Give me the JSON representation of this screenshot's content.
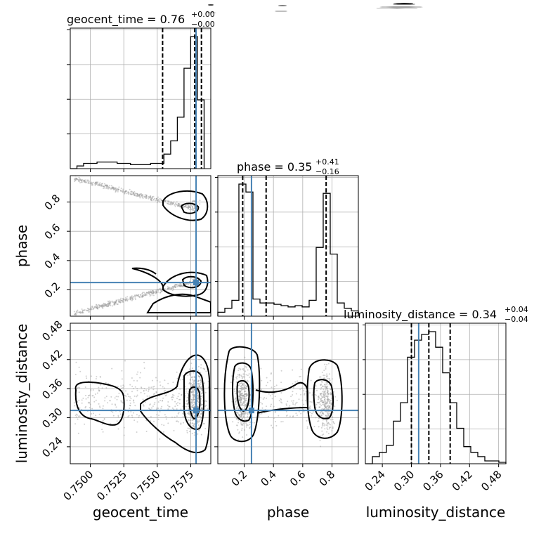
{
  "chart_data": {
    "type": "corner",
    "parameters": [
      "geocent_time",
      "phase",
      "luminosity_distance"
    ],
    "truths": {
      "geocent_time": 0.7579,
      "phase": 0.25,
      "luminosity_distance": 0.315
    },
    "titles": [
      {
        "param": "geocent_time",
        "label": "geocent_time = 0.76",
        "sup": "+0.00",
        "sub": "−0.00"
      },
      {
        "param": "phase",
        "label": "phase = 0.35",
        "sup": "+0.41",
        "sub": "−0.16"
      },
      {
        "param": "luminosity_distance",
        "label": "luminosity_distance = 0.34",
        "sup": "+0.04",
        "sub": "−0.04"
      }
    ],
    "axis_labels": {
      "x": [
        "geocent_time",
        "phase",
        "luminosity_distance"
      ],
      "y": [
        "phase",
        "luminosity_distance"
      ]
    },
    "ranges": {
      "geocent_time": [
        0.7485,
        0.759
      ],
      "phase": [
        0.02,
        0.98
      ],
      "luminosity_distance": [
        0.205,
        0.495
      ]
    },
    "ticks": {
      "geocent_time": {
        "values": [
          0.75,
          0.7525,
          0.755,
          0.7575
        ],
        "labels": [
          "0.7500",
          "0.7525",
          "0.7550",
          "0.7575"
        ]
      },
      "phase": {
        "values": [
          0.2,
          0.4,
          0.6,
          0.8
        ],
        "labels": [
          "0.2",
          "0.4",
          "0.6",
          "0.8"
        ]
      },
      "luminosity_distance": {
        "values": [
          0.24,
          0.3,
          0.36,
          0.42,
          0.48
        ],
        "labels": [
          "0.24",
          "0.30",
          "0.36",
          "0.42",
          "0.48"
        ]
      }
    },
    "quantiles": {
      "geocent_time": [
        0.7554,
        0.7578,
        0.7583
      ],
      "phase": [
        0.19,
        0.35,
        0.76
      ],
      "luminosity_distance": [
        0.3,
        0.336,
        0.38
      ]
    },
    "histograms": {
      "geocent_time": {
        "edges": [
          0.7485,
          0.749,
          0.7495,
          0.75,
          0.7505,
          0.751,
          0.7515,
          0.752,
          0.7525,
          0.753,
          0.7535,
          0.754,
          0.7545,
          0.755,
          0.7555,
          0.756,
          0.7565,
          0.757,
          0.7575,
          0.758,
          0.7585
        ],
        "counts": [
          0,
          2,
          4,
          4,
          5,
          5,
          5,
          4,
          4,
          3,
          3,
          3,
          4,
          4,
          11,
          21,
          39,
          76,
          100,
          52
        ]
      },
      "phase": {
        "edges": [
          0.02,
          0.068,
          0.116,
          0.164,
          0.212,
          0.26,
          0.308,
          0.356,
          0.404,
          0.452,
          0.5,
          0.548,
          0.596,
          0.644,
          0.692,
          0.74,
          0.788,
          0.836,
          0.884,
          0.932,
          0.98
        ],
        "counts": [
          3,
          6,
          12,
          100,
          94,
          13,
          10,
          10,
          9,
          8,
          7,
          8,
          7,
          12,
          52,
          93,
          47,
          10,
          6,
          4
        ]
      },
      "luminosity_distance": {
        "edges": [
          0.205,
          0.2195,
          0.234,
          0.2485,
          0.263,
          0.2775,
          0.292,
          0.3065,
          0.321,
          0.3355,
          0.35,
          0.3645,
          0.379,
          0.3935,
          0.408,
          0.4225,
          0.437,
          0.4515,
          0.466,
          0.4805,
          0.495
        ],
        "counts": [
          0,
          5,
          8,
          13,
          30,
          43,
          75,
          87,
          91,
          93,
          82,
          64,
          43,
          25,
          12,
          8,
          5,
          2,
          2,
          1
        ]
      }
    },
    "colors": {
      "truth": "#4682b4",
      "hist": "#000000",
      "points": "#9a9a9a",
      "grid": "#b0b0b0"
    }
  }
}
